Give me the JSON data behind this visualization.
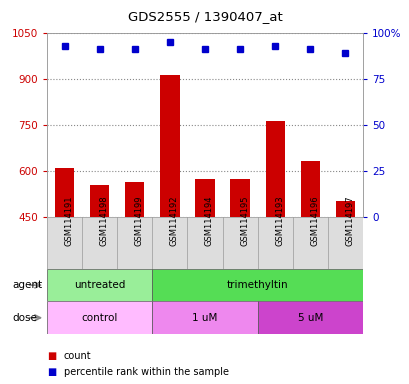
{
  "title": "GDS2555 / 1390407_at",
  "samples": [
    "GSM114191",
    "GSM114198",
    "GSM114199",
    "GSM114192",
    "GSM114194",
    "GSM114195",
    "GSM114193",
    "GSM114196",
    "GSM114197"
  ],
  "counts": [
    608,
    555,
    565,
    912,
    572,
    572,
    762,
    632,
    502
  ],
  "percentile_ranks": [
    93,
    91,
    91,
    95,
    91,
    91,
    93,
    91,
    89
  ],
  "ylim_left": [
    450,
    1050
  ],
  "ylim_right": [
    0,
    100
  ],
  "yticks_left": [
    450,
    600,
    750,
    900,
    1050
  ],
  "yticks_right": [
    0,
    25,
    50,
    75,
    100
  ],
  "ytick_right_labels": [
    "0",
    "25",
    "50",
    "75",
    "100%"
  ],
  "bar_color": "#cc0000",
  "dot_color": "#0000cc",
  "agent_groups": [
    {
      "label": "untreated",
      "start": 0,
      "end": 3,
      "color": "#99ee99"
    },
    {
      "label": "trimethyltin",
      "start": 3,
      "end": 9,
      "color": "#55dd55"
    }
  ],
  "dose_groups": [
    {
      "label": "control",
      "start": 0,
      "end": 3,
      "color": "#ffbbff"
    },
    {
      "label": "1 uM",
      "start": 3,
      "end": 6,
      "color": "#ee88ee"
    },
    {
      "label": "5 uM",
      "start": 6,
      "end": 9,
      "color": "#cc44cc"
    }
  ],
  "left_axis_color": "#cc0000",
  "right_axis_color": "#0000cc",
  "grid_color": "#888888",
  "sample_bg_color": "#dddddd",
  "background_color": "#ffffff",
  "label_agent": "agent",
  "label_dose": "dose",
  "legend_count": "count",
  "legend_percentile": "percentile rank within the sample"
}
